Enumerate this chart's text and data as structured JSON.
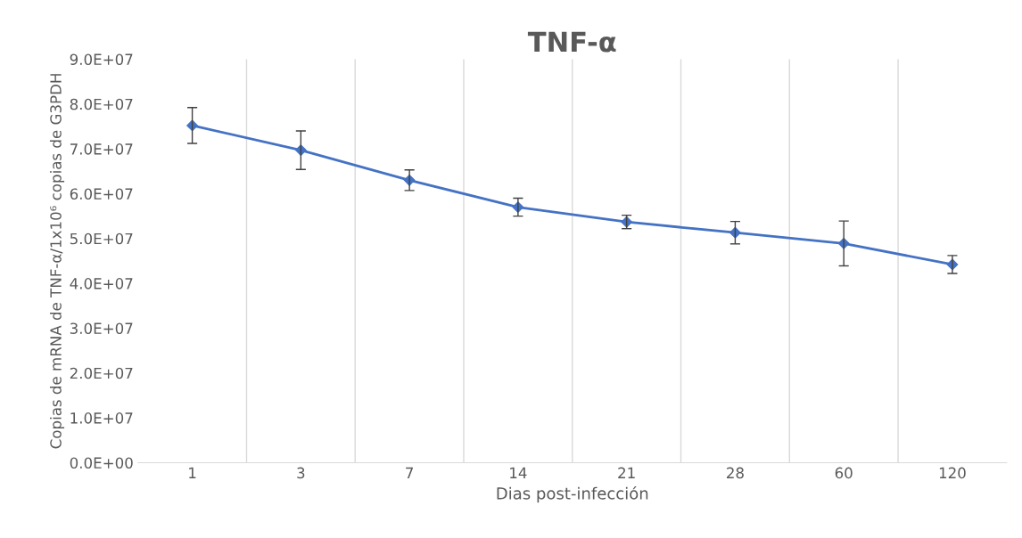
{
  "chart_data": {
    "type": "line",
    "title": "TNF-α",
    "xlabel": "Dias post-infección",
    "ylabel": "Copias de mRNA de TNF-α/1x10⁶ copias de G3PDH",
    "categories": [
      "1",
      "3",
      "7",
      "14",
      "21",
      "28",
      "60",
      "120"
    ],
    "series": [
      {
        "color": "#4472c4",
        "values": [
          75200000,
          69700000,
          63000000,
          57000000,
          53700000,
          51300000,
          48900000,
          44200000
        ],
        "errors": [
          4000000,
          4300000,
          2300000,
          2000000,
          1500000,
          2500000,
          5000000,
          2000000
        ]
      }
    ],
    "ylim": [
      0,
      90000000
    ],
    "yticks": [
      {
        "value": 0,
        "label": "0.0E+00"
      },
      {
        "value": 10000000,
        "label": "1.0E+07"
      },
      {
        "value": 20000000,
        "label": "2.0E+07"
      },
      {
        "value": 30000000,
        "label": "3.0E+07"
      },
      {
        "value": 40000000,
        "label": "4.0E+07"
      },
      {
        "value": 50000000,
        "label": "5.0E+07"
      },
      {
        "value": 60000000,
        "label": "6.0E+07"
      },
      {
        "value": 70000000,
        "label": "7.0E+07"
      },
      {
        "value": 80000000,
        "label": "8.0E+07"
      },
      {
        "value": 90000000,
        "label": "9.0E+07"
      }
    ],
    "grid": "x",
    "marker": "diamond",
    "line_style": "solid",
    "legend": false
  }
}
